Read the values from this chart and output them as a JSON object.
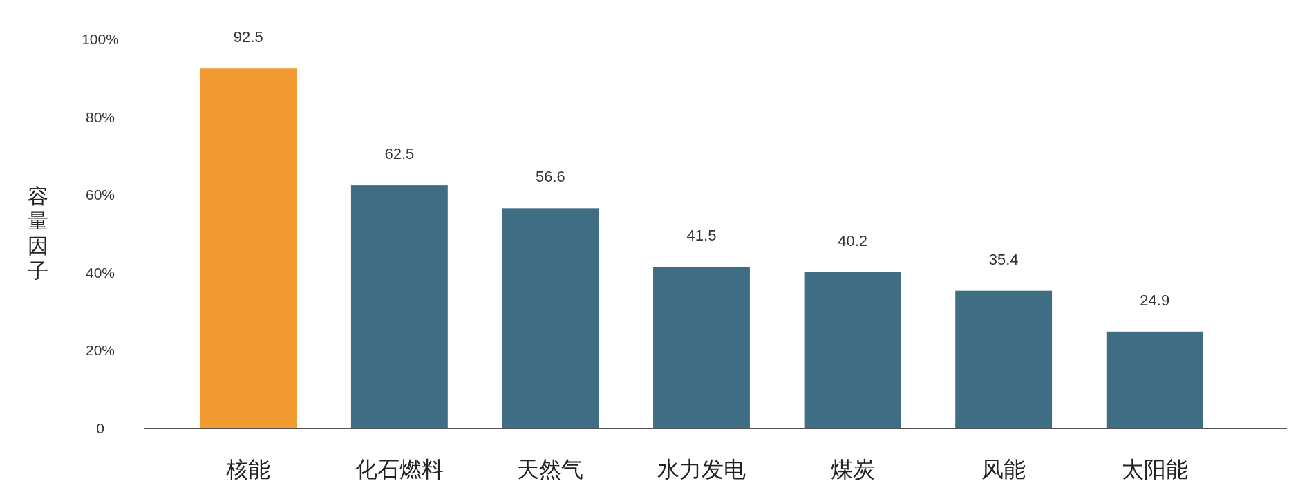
{
  "chart_data": {
    "type": "bar",
    "ylabel": "容量因子",
    "categories": [
      "核能",
      "化石燃料",
      "天然气",
      "水力发电",
      "煤炭",
      "风能",
      "太阳能"
    ],
    "values": [
      92.5,
      62.5,
      56.6,
      41.5,
      40.2,
      35.4,
      24.9
    ],
    "colors": [
      "#f39a30",
      "#3f6d84",
      "#3f6d84",
      "#3f6d84",
      "#3f6d84",
      "#3f6d84",
      "#3f6d84"
    ],
    "ylim": [
      0,
      100
    ],
    "yticks": [
      0,
      {
        "value": 20,
        "label": "20%"
      },
      {
        "value": 40,
        "label": "40%"
      },
      {
        "value": 60,
        "label": "60%"
      },
      {
        "value": 80,
        "label": "80%"
      },
      {
        "value": 100,
        "label": "100%"
      }
    ],
    "data_labels": true,
    "grid": false
  }
}
